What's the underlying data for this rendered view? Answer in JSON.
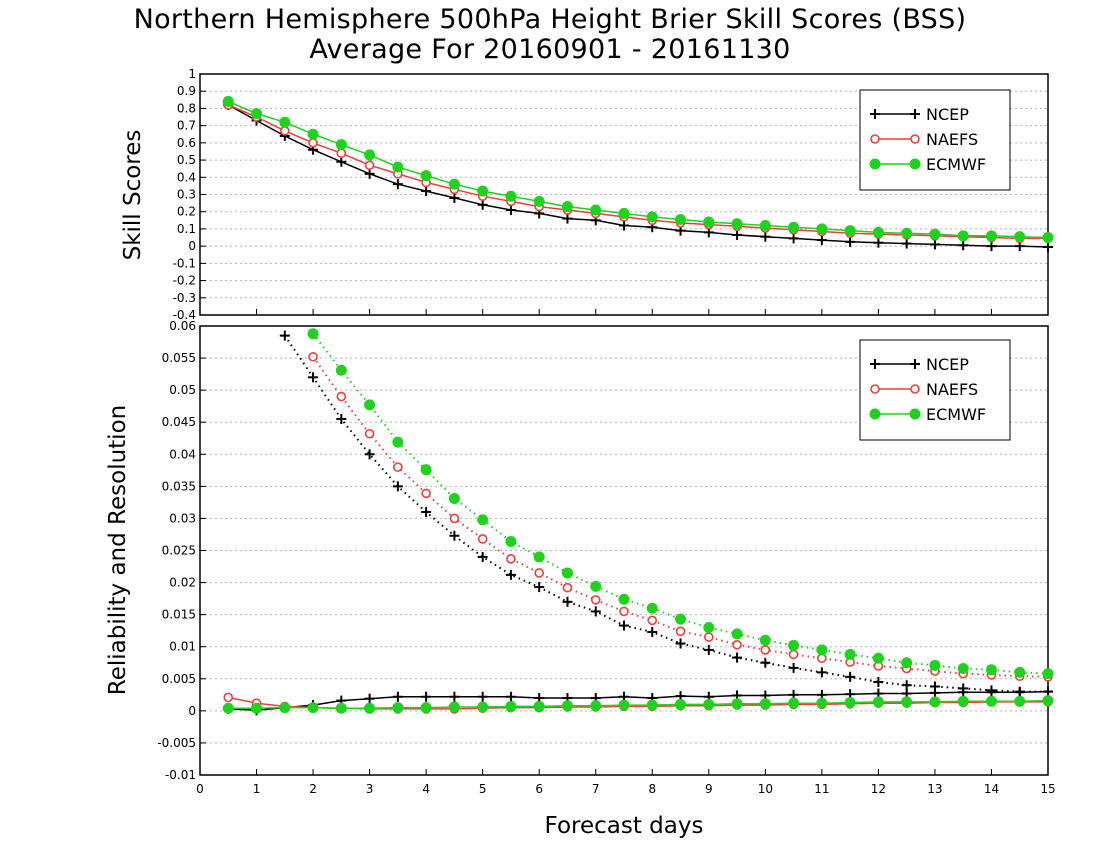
{
  "title": "Northern Hemisphere 500hPa Height Brier Skill Scores (BSS)",
  "subtitle": "Average For 20160901 - 20161130",
  "xlabel": "Forecast days",
  "colors": {
    "NCEP": "#000000",
    "NAEFS": "#f03c3c",
    "ECMWF": "#1ed21e"
  },
  "chart_data": [
    {
      "type": "line",
      "ylabel": "Skill Scores",
      "xlim": [
        0,
        15
      ],
      "ylim": [
        -0.4,
        1
      ],
      "x_ticks": [
        0,
        1,
        2,
        3,
        4,
        5,
        6,
        7,
        8,
        9,
        10,
        11,
        12,
        13,
        14,
        15
      ],
      "y_ticks": [
        -0.4,
        -0.3,
        -0.2,
        -0.1,
        0,
        0.1,
        0.2,
        0.3,
        0.4,
        0.5,
        0.6,
        0.7,
        0.8,
        0.9,
        1
      ],
      "y_tick_labels": [
        "-0.4",
        "-0.3",
        "-0.2",
        "-0.1",
        "0",
        "0.1",
        "0.2",
        "0.3",
        "0.4",
        "0.5",
        "0.6",
        "0.7",
        "0.8",
        "0.9",
        "1"
      ],
      "grid": true,
      "legend": "top-right",
      "series": [
        {
          "name": "NCEP",
          "marker": "plus",
          "style": "solid",
          "x": [
            0.5,
            1,
            1.5,
            2,
            2.5,
            3,
            3.5,
            4,
            4.5,
            5,
            5.5,
            6,
            6.5,
            7,
            7.5,
            8,
            8.5,
            9,
            9.5,
            10,
            10.5,
            11,
            11.5,
            12,
            12.5,
            13,
            13.5,
            14,
            14.5,
            15
          ],
          "y": [
            0.82,
            0.73,
            0.64,
            0.56,
            0.49,
            0.42,
            0.36,
            0.32,
            0.28,
            0.24,
            0.21,
            0.19,
            0.16,
            0.15,
            0.12,
            0.11,
            0.09,
            0.08,
            0.065,
            0.055,
            0.045,
            0.035,
            0.025,
            0.02,
            0.015,
            0.01,
            0.005,
            0.0,
            0.0,
            -0.005
          ]
        },
        {
          "name": "NAEFS",
          "marker": "circle-open",
          "style": "solid",
          "x": [
            0.5,
            1,
            1.5,
            2,
            2.5,
            3,
            3.5,
            4,
            4.5,
            5,
            5.5,
            6,
            6.5,
            7,
            7.5,
            8,
            8.5,
            9,
            9.5,
            10,
            10.5,
            11,
            11.5,
            12,
            12.5,
            13,
            13.5,
            14,
            14.5,
            15
          ],
          "y": [
            0.82,
            0.75,
            0.67,
            0.6,
            0.54,
            0.47,
            0.42,
            0.37,
            0.33,
            0.29,
            0.26,
            0.23,
            0.21,
            0.19,
            0.17,
            0.15,
            0.135,
            0.125,
            0.115,
            0.105,
            0.095,
            0.085,
            0.075,
            0.07,
            0.065,
            0.06,
            0.055,
            0.05,
            0.045,
            0.045
          ]
        },
        {
          "name": "ECMWF",
          "marker": "circle-filled",
          "style": "solid",
          "x": [
            0.5,
            1,
            1.5,
            2,
            2.5,
            3,
            3.5,
            4,
            4.5,
            5,
            5.5,
            6,
            6.5,
            7,
            7.5,
            8,
            8.5,
            9,
            9.5,
            10,
            10.5,
            11,
            11.5,
            12,
            12.5,
            13,
            13.5,
            14,
            14.5,
            15
          ],
          "y": [
            0.84,
            0.77,
            0.72,
            0.65,
            0.59,
            0.53,
            0.46,
            0.41,
            0.36,
            0.32,
            0.29,
            0.26,
            0.23,
            0.21,
            0.19,
            0.17,
            0.155,
            0.14,
            0.13,
            0.12,
            0.11,
            0.1,
            0.09,
            0.08,
            0.075,
            0.07,
            0.06,
            0.06,
            0.055,
            0.05
          ]
        }
      ]
    },
    {
      "type": "line",
      "ylabel": "Reliability and Resolution",
      "xlim": [
        0,
        15
      ],
      "ylim": [
        -0.01,
        0.06
      ],
      "x_ticks": [
        0,
        1,
        2,
        3,
        4,
        5,
        6,
        7,
        8,
        9,
        10,
        11,
        12,
        13,
        14,
        15
      ],
      "y_ticks": [
        -0.01,
        -0.005,
        0,
        0.005,
        0.01,
        0.015,
        0.02,
        0.025,
        0.03,
        0.035,
        0.04,
        0.045,
        0.05,
        0.055,
        0.06
      ],
      "y_tick_labels": [
        "-0.01",
        "-0.005",
        "0",
        "0.005",
        "0.01",
        "0.015",
        "0.02",
        "0.025",
        "0.03",
        "0.035",
        "0.04",
        "0.045",
        "0.05",
        "0.055",
        "0.06"
      ],
      "grid": true,
      "legend": "top-right",
      "series": [
        {
          "name": "NCEP",
          "component": "resolution",
          "marker": "plus",
          "style": "dotted",
          "x": [
            1.5,
            2,
            2.5,
            3,
            3.5,
            4,
            4.5,
            5,
            5.5,
            6,
            6.5,
            7,
            7.5,
            8,
            8.5,
            9,
            9.5,
            10,
            10.5,
            11,
            11.5,
            12,
            12.5,
            13,
            13.5,
            14,
            14.5,
            15
          ],
          "y": [
            0.0585,
            0.052,
            0.0455,
            0.04,
            0.035,
            0.031,
            0.0273,
            0.024,
            0.0212,
            0.0193,
            0.017,
            0.0155,
            0.0133,
            0.0123,
            0.0105,
            0.0095,
            0.0083,
            0.0075,
            0.0067,
            0.006,
            0.0053,
            0.0045,
            0.004,
            0.0038,
            0.0035,
            0.0032,
            0.003,
            0.003
          ]
        },
        {
          "name": "NAEFS",
          "component": "resolution",
          "marker": "circle-open",
          "style": "dotted",
          "x": [
            2,
            2.5,
            3,
            3.5,
            4,
            4.5,
            5,
            5.5,
            6,
            6.5,
            7,
            7.5,
            8,
            8.5,
            9,
            9.5,
            10,
            10.5,
            11,
            11.5,
            12,
            12.5,
            13,
            13.5,
            14,
            14.5,
            15
          ],
          "y": [
            0.0552,
            0.049,
            0.0432,
            0.038,
            0.0339,
            0.03,
            0.0268,
            0.0237,
            0.0215,
            0.0192,
            0.0173,
            0.0155,
            0.0141,
            0.0124,
            0.0115,
            0.0103,
            0.0095,
            0.0088,
            0.0082,
            0.0076,
            0.007,
            0.0066,
            0.0062,
            0.0058,
            0.0056,
            0.0054,
            0.0053
          ]
        },
        {
          "name": "ECMWF",
          "component": "resolution",
          "marker": "circle-filled",
          "style": "dotted",
          "x": [
            2,
            2.5,
            3,
            3.5,
            4,
            4.5,
            5,
            5.5,
            6,
            6.5,
            7,
            7.5,
            8,
            8.5,
            9,
            9.5,
            10,
            10.5,
            11,
            11.5,
            12,
            12.5,
            13,
            13.5,
            14,
            14.5,
            15
          ],
          "y": [
            0.0588,
            0.0531,
            0.0477,
            0.0419,
            0.0376,
            0.0331,
            0.0298,
            0.0264,
            0.024,
            0.0215,
            0.0194,
            0.0174,
            0.016,
            0.0143,
            0.013,
            0.012,
            0.011,
            0.0102,
            0.0095,
            0.0088,
            0.0082,
            0.0075,
            0.0071,
            0.0066,
            0.0064,
            0.006,
            0.0058
          ]
        },
        {
          "name": "NCEP",
          "component": "reliability",
          "marker": "plus",
          "style": "solid",
          "x": [
            0.5,
            1,
            1.5,
            2,
            2.5,
            3,
            3.5,
            4,
            4.5,
            5,
            5.5,
            6,
            6.5,
            7,
            7.5,
            8,
            8.5,
            9,
            9.5,
            10,
            10.5,
            11,
            11.5,
            12,
            12.5,
            13,
            13.5,
            14,
            14.5,
            15
          ],
          "y": [
            0.0003,
            0.0001,
            0.0005,
            0.0009,
            0.0016,
            0.0019,
            0.0022,
            0.0022,
            0.0022,
            0.0022,
            0.0022,
            0.002,
            0.002,
            0.002,
            0.0022,
            0.002,
            0.0023,
            0.0022,
            0.0024,
            0.0024,
            0.0025,
            0.0025,
            0.0026,
            0.0027,
            0.0027,
            0.0028,
            0.0029,
            0.0029,
            0.0029,
            0.003
          ]
        },
        {
          "name": "NAEFS",
          "component": "reliability",
          "marker": "circle-open",
          "style": "solid",
          "x": [
            0.5,
            1,
            1.5,
            2,
            2.5,
            3,
            3.5,
            4,
            4.5,
            5,
            5.5,
            6,
            6.5,
            7,
            7.5,
            8,
            8.5,
            9,
            9.5,
            10,
            10.5,
            11,
            11.5,
            12,
            12.5,
            13,
            13.5,
            14,
            14.5,
            15
          ],
          "y": [
            0.0021,
            0.0012,
            0.0007,
            0.0005,
            0.0004,
            0.0003,
            0.0003,
            0.0003,
            0.0003,
            0.0004,
            0.0005,
            0.0005,
            0.0006,
            0.0006,
            0.0007,
            0.0007,
            0.0008,
            0.0008,
            0.0009,
            0.0009,
            0.001,
            0.001,
            0.0011,
            0.0012,
            0.0012,
            0.0013,
            0.0013,
            0.0014,
            0.0014,
            0.0014
          ]
        },
        {
          "name": "ECMWF",
          "component": "reliability",
          "marker": "circle-filled",
          "style": "solid",
          "x": [
            0.5,
            1,
            1.5,
            2,
            2.5,
            3,
            3.5,
            4,
            4.5,
            5,
            5.5,
            6,
            6.5,
            7,
            7.5,
            8,
            8.5,
            9,
            9.5,
            10,
            10.5,
            11,
            11.5,
            12,
            12.5,
            13,
            13.5,
            14,
            14.5,
            15
          ],
          "y": [
            0.0004,
            0.0004,
            0.0005,
            0.0005,
            0.0004,
            0.0004,
            0.0005,
            0.0005,
            0.0006,
            0.0006,
            0.0007,
            0.0007,
            0.0008,
            0.0008,
            0.0009,
            0.0009,
            0.001,
            0.001,
            0.0011,
            0.0011,
            0.0012,
            0.0012,
            0.0013,
            0.0014,
            0.0014,
            0.0014,
            0.0015,
            0.0015,
            0.0015,
            0.0016
          ]
        }
      ]
    }
  ]
}
